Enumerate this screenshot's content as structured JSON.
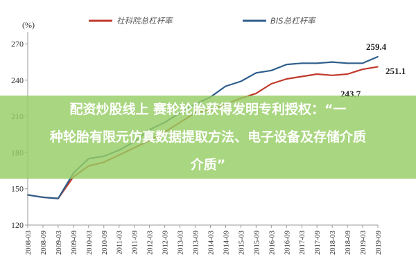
{
  "chart_data": {
    "type": "line",
    "unit_label": "(%)",
    "ylim": [
      120,
      280
    ],
    "yticks": [
      "120",
      "150",
      "180",
      "210",
      "240",
      "270"
    ],
    "x": [
      "2008-03",
      "2008-09",
      "2009-03",
      "2009-09",
      "2010-03",
      "2010-09",
      "2011-03",
      "2011-09",
      "2012-03",
      "2012-09",
      "2013-03",
      "2013-09",
      "2014-03",
      "2014-09",
      "2015-03",
      "2015-09",
      "2016-03",
      "2016-09",
      "2017-03",
      "2017-09",
      "2018-03",
      "2018-09",
      "2019-03",
      "2019-09"
    ],
    "series": [
      {
        "name": "社科院总杠杆率",
        "color": "#c0392b",
        "values": [
          145,
          143,
          142,
          160,
          169,
          172,
          178,
          184,
          190,
          197,
          205,
          213,
          215,
          220,
          225,
          229,
          237,
          241,
          243,
          245,
          244,
          245,
          249,
          251.1
        ]
      },
      {
        "name": "BIS总杠杆率",
        "color": "#2e5e8c",
        "values": [
          145,
          143,
          142,
          163,
          175,
          177,
          182,
          189,
          199,
          205,
          213,
          220,
          226,
          235,
          239,
          246,
          248,
          253,
          254,
          254,
          255,
          254,
          254,
          259.4
        ]
      }
    ],
    "annotations": [
      "259.4",
      "251.1",
      "243.7"
    ],
    "grid": false,
    "legend_position": "top"
  },
  "overlay": {
    "line1": "配资炒股线上 赛轮轮胎获得发明专利授权：“一",
    "line2": "种轮胎有限元仿真数据提取方法、电子设备及存储介质",
    "line3": "介质”"
  }
}
